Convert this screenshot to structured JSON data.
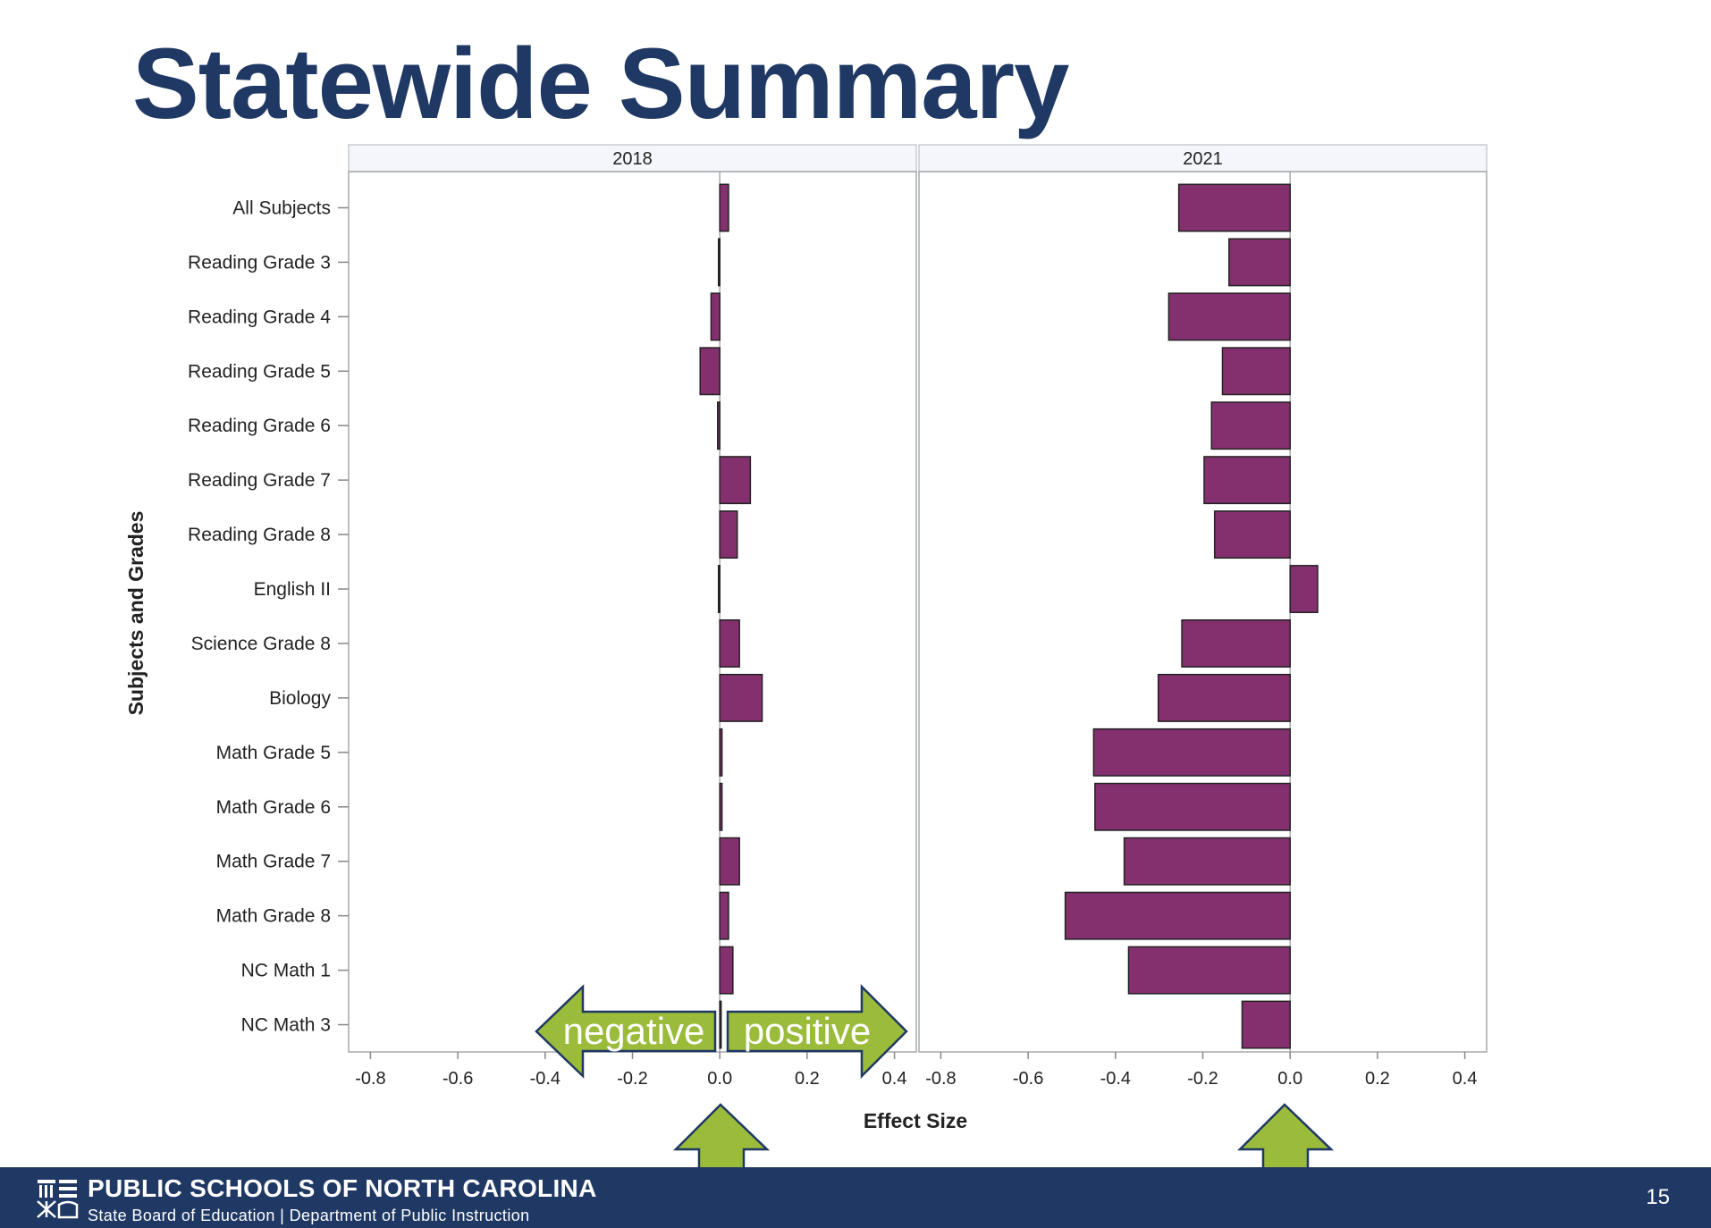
{
  "slide": {
    "title": "Statewide Summary",
    "page_number": "15"
  },
  "footer": {
    "org": "PUBLIC SCHOOLS OF NORTH CAROLINA",
    "sub": "State Board of Education | Department of Public Instruction",
    "logo_icon": "nc-dpi-logo-icon"
  },
  "annotations": {
    "negative_label": "negative",
    "positive_label": "positive",
    "arrow_color": "#9bbb3b"
  },
  "chart_data": {
    "type": "bar",
    "orientation": "horizontal",
    "xlabel": "Effect Size",
    "ylabel": "Subjects and Grades",
    "xlim": [
      -0.85,
      0.45
    ],
    "xticks": [
      "-0.8",
      "-0.6",
      "-0.4",
      "-0.2",
      "0.0",
      "0.2",
      "0.4"
    ],
    "xtick_values": [
      -0.8,
      -0.6,
      -0.4,
      -0.2,
      0.0,
      0.2,
      0.4
    ],
    "bar_color": "#84306e",
    "categories": [
      "All Subjects",
      "Reading Grade 3",
      "Reading Grade 4",
      "Reading Grade 5",
      "Reading Grade 6",
      "Reading Grade 7",
      "Reading Grade 8",
      "English II",
      "Science Grade 8",
      "Biology",
      "Math Grade 5",
      "Math Grade 6",
      "Math Grade 7",
      "Math Grade 8",
      "NC Math 1",
      "NC Math 3"
    ],
    "panels": [
      {
        "name": "2018",
        "values": [
          0.02,
          -0.003,
          -0.02,
          -0.045,
          -0.005,
          0.07,
          0.04,
          -0.003,
          0.045,
          0.097,
          0.005,
          0.005,
          0.045,
          0.02,
          0.03,
          0.0
        ]
      },
      {
        "name": "2021",
        "values": [
          -0.255,
          -0.14,
          -0.278,
          -0.155,
          -0.18,
          -0.197,
          -0.173,
          0.063,
          -0.248,
          -0.302,
          -0.45,
          -0.447,
          -0.38,
          -0.515,
          -0.37,
          -0.11
        ]
      }
    ]
  }
}
